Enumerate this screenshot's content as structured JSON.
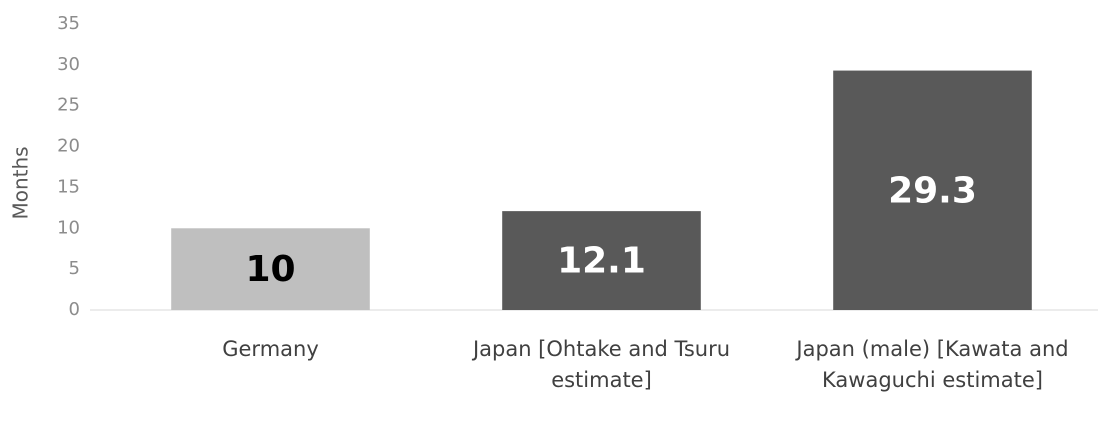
{
  "chart_data": {
    "type": "bar",
    "y_label": "Months",
    "categories": [
      "Germany",
      "Japan [Ohtake and Tsuru estimate]",
      "Japan (male) [Kawata and Kawaguchi estimate]"
    ],
    "values": [
      10,
      12.1,
      29.3
    ],
    "colors": [
      "#bfbfbf",
      "#595959",
      "#595959"
    ],
    "ylim": [
      0,
      35
    ],
    "yticks": [
      0,
      5,
      10,
      15,
      20,
      25,
      30,
      35
    ],
    "grid": false
  }
}
